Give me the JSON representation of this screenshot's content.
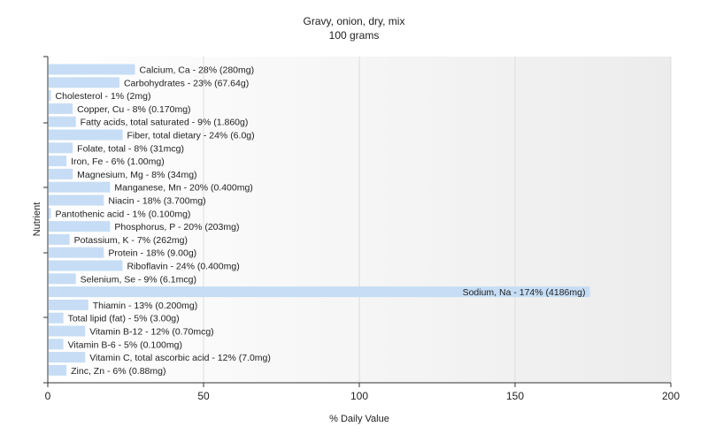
{
  "chart_data": {
    "type": "bar",
    "orientation": "horizontal",
    "title": "Gravy, onion, dry, mix",
    "subtitle": "100 grams",
    "xlabel": "% Daily Value",
    "ylabel": "Nutrient",
    "xlim": [
      0,
      200
    ],
    "xticks": [
      0,
      50,
      100,
      150,
      200
    ],
    "grid": true,
    "bar_color": "#c6ddf5",
    "categories": [
      "Calcium, Ca",
      "Carbohydrates",
      "Cholesterol",
      "Copper, Cu",
      "Fatty acids, total saturated",
      "Fiber, total dietary",
      "Folate, total",
      "Iron, Fe",
      "Magnesium, Mg",
      "Manganese, Mn",
      "Niacin",
      "Pantothenic acid",
      "Phosphorus, P",
      "Potassium, K",
      "Protein",
      "Riboflavin",
      "Selenium, Se",
      "Sodium, Na",
      "Thiamin",
      "Total lipid (fat)",
      "Vitamin B-12",
      "Vitamin B-6",
      "Vitamin C, total ascorbic acid",
      "Zinc, Zn"
    ],
    "values": [
      28,
      23,
      1,
      8,
      9,
      24,
      8,
      6,
      8,
      20,
      18,
      1,
      20,
      7,
      18,
      24,
      9,
      174,
      13,
      5,
      12,
      5,
      12,
      6
    ],
    "labels": [
      "Calcium, Ca - 28% (280mg)",
      "Carbohydrates - 23% (67.64g)",
      "Cholesterol - 1% (2mg)",
      "Copper, Cu - 8% (0.170mg)",
      "Fatty acids, total saturated - 9% (1.860g)",
      "Fiber, total dietary - 24% (6.0g)",
      "Folate, total - 8% (31mcg)",
      "Iron, Fe - 6% (1.00mg)",
      "Magnesium, Mg - 8% (34mg)",
      "Manganese, Mn - 20% (0.400mg)",
      "Niacin - 18% (3.700mg)",
      "Pantothenic acid - 1% (0.100mg)",
      "Phosphorus, P - 20% (203mg)",
      "Potassium, K - 7% (262mg)",
      "Protein - 18% (9.00g)",
      "Riboflavin - 24% (0.400mg)",
      "Selenium, Se - 9% (6.1mcg)",
      "Sodium, Na - 174% (4186mg)",
      "Thiamin - 13% (0.200mg)",
      "Total lipid (fat) - 5% (3.00g)",
      "Vitamin B-12 - 12% (0.70mcg)",
      "Vitamin B-6 - 5% (0.100mg)",
      "Vitamin C, total ascorbic acid - 12% (7.0mg)",
      "Zinc, Zn - 6% (0.88mg)"
    ]
  }
}
